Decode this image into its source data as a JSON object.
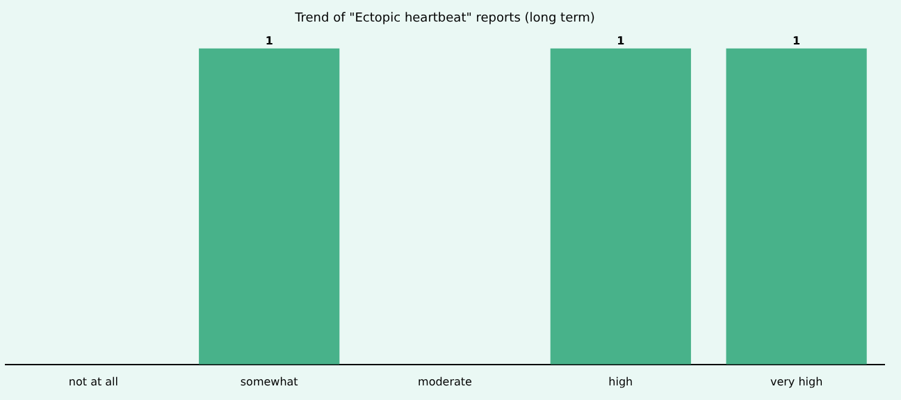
{
  "chart_data": {
    "type": "bar",
    "title": "Trend of \"Ectopic heartbeat\" reports (long term)",
    "categories": [
      "not at all",
      "somewhat",
      "moderate",
      "high",
      "very high"
    ],
    "values": [
      0,
      1,
      0,
      1,
      1
    ],
    "value_labels": [
      null,
      "1",
      null,
      "1",
      "1"
    ],
    "color": "#48b28a",
    "grid": false,
    "legend": false,
    "tick_labels": "x"
  }
}
